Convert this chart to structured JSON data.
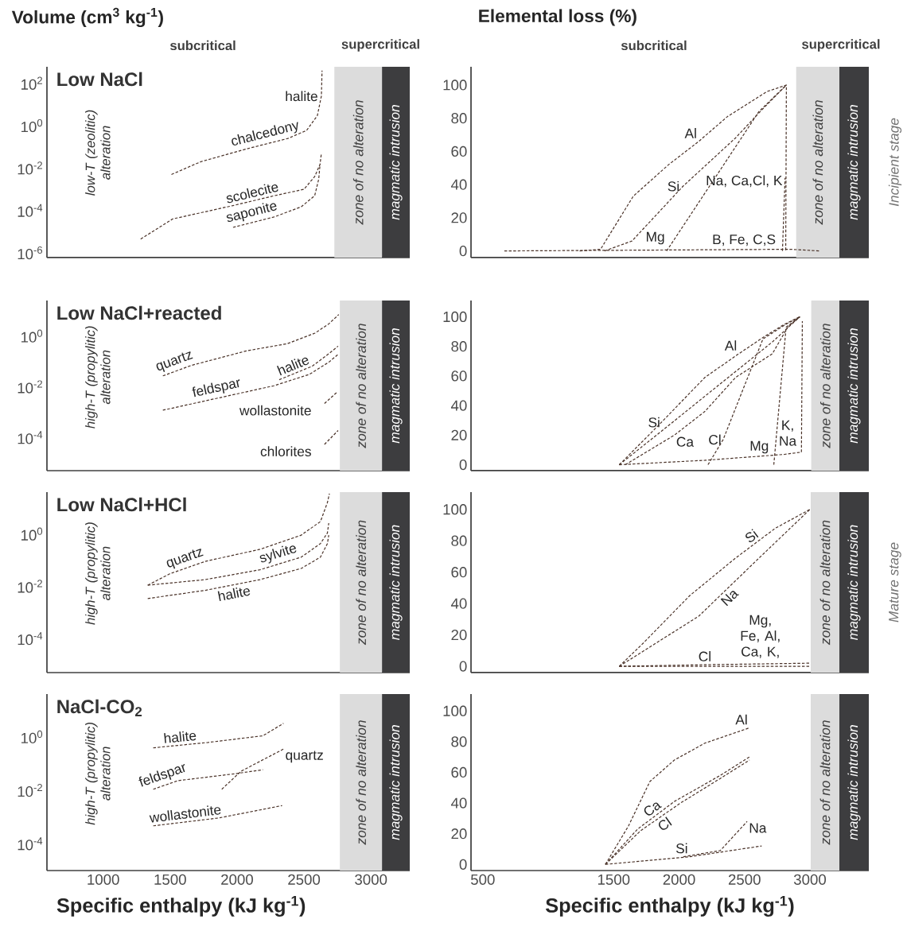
{
  "chart_data": [
    {
      "type": "line",
      "title": "Low NaCl",
      "ylabel": "Volume (cm$^{3}$ kg$^{-1}$)",
      "annotations": [
        "low-T (zeolitic) alteration",
        "subcritical",
        "supercritical"
      ],
      "log": true,
      "line_style": "dashed",
      "tick_labels": "y",
      "xlim": [
        580,
        3290
      ],
      "ylim": [
        6e-07,
        600
      ],
      "yticks": [
        {
          "value": 1e-06,
          "label": "10$^{-6}$"
        },
        {
          "value": 0.0001,
          "label": "10$^{-4}$"
        },
        {
          "value": 0.01,
          "label": "10$^{-2}$"
        },
        {
          "value": 1,
          "label": "10$^{0}$"
        },
        {
          "value": 100,
          "label": "10$^{2}$"
        }
      ],
      "bands": [
        {
          "axis": "x",
          "from": 2727,
          "to": 3083,
          "label": "zone of no alteration",
          "color": "#dcdcdc"
        },
        {
          "axis": "x",
          "from": 3083,
          "to": 3290,
          "label": "magmatic intrusion",
          "color": "#3d3d3f"
        }
      ],
      "series": [
        {
          "name": "halite",
          "color": "#4a3228",
          "x": [
            2520,
            2600,
            2630,
            2635
          ],
          "values": [
            0.6,
            3,
            25,
            400
          ]
        },
        {
          "name": "chalcedony",
          "color": "#4a3228",
          "x": [
            1510,
            1730,
            2070,
            2380,
            2520
          ],
          "values": [
            0.005,
            0.02,
            0.08,
            0.25,
            0.6
          ]
        },
        {
          "name": "scolecite",
          "color": "#4a3228",
          "x": [
            1280,
            1520,
            1970,
            2280,
            2500,
            2580,
            2620,
            2630
          ],
          "values": [
            4.5e-06,
            4e-05,
            0.00017,
            0.0005,
            0.001,
            0.004,
            0.015,
            0.05
          ]
        },
        {
          "name": "saponite",
          "color": "#4a3228",
          "x": [
            1970,
            2280,
            2480,
            2580,
            2610,
            2620
          ],
          "values": [
            1.6e-05,
            5e-05,
            0.00015,
            0.0005,
            0.003,
            0.015
          ]
        }
      ]
    },
    {
      "type": "line",
      "ylabel": "Elemental loss (%)",
      "annotations": [
        "subcritical",
        "supercritical",
        "Incipient stage"
      ],
      "line_style": "dashed",
      "tick_labels": "y",
      "xlim": [
        410,
        3450
      ],
      "ylim": [
        -4,
        111
      ],
      "yticks": [
        0,
        20,
        40,
        60,
        80,
        100
      ],
      "bands": [
        {
          "axis": "x",
          "from": 2895,
          "to": 3225,
          "label": "zone of no alteration",
          "color": "#dcdcdc"
        },
        {
          "axis": "x",
          "from": 3225,
          "to": 3450,
          "label": "magmatic intrusion",
          "color": "#3d3d3f"
        }
      ],
      "series": [
        {
          "name": "Al",
          "color": "#4a3228",
          "x": [
            1240,
            1400,
            1650,
            1920,
            2150,
            2370,
            2670,
            2820,
            2815
          ],
          "values": [
            0,
            1,
            33,
            52,
            66,
            81,
            96,
            100,
            0
          ]
        },
        {
          "name": "Si",
          "color": "#4a3228",
          "x": [
            1430,
            1640,
            2030,
            2430,
            2620,
            2820
          ],
          "values": [
            0,
            6,
            39,
            68,
            84,
            100
          ]
        },
        {
          "name": "Mg",
          "color": "#4a3228",
          "x": [
            1905,
            2610,
            2820
          ],
          "values": [
            0,
            84,
            100
          ]
        },
        {
          "name": "Na, Ca,Cl, K",
          "color": "#4a3228",
          "x": [
            2790,
            2810
          ],
          "values": [
            0,
            44
          ]
        },
        {
          "name": "B, Fe, C,S",
          "color": "#4a3228",
          "x": [
            665,
            2850,
            3075
          ],
          "values": [
            0,
            1,
            0
          ]
        }
      ]
    },
    {
      "type": "line",
      "title": "Low NaCl+reacted",
      "annotations": [
        "high-T (propylitic) alteration"
      ],
      "log": true,
      "line_style": "dashed",
      "tick_labels": "y",
      "xlim": [
        580,
        3290
      ],
      "ylim": [
        5e-06,
        25
      ],
      "yticks": [
        {
          "value": 0.0001,
          "label": "10$^{-4}$"
        },
        {
          "value": 0.01,
          "label": "10$^{-2}$"
        },
        {
          "value": 1,
          "label": "10$^{0}$"
        }
      ],
      "bands": [
        {
          "axis": "x",
          "from": 2768,
          "to": 3083,
          "label": "zone of no alteration",
          "color": "#dcdcdc"
        },
        {
          "axis": "x",
          "from": 3083,
          "to": 3290,
          "label": "magmatic intrusion",
          "color": "#3d3d3f"
        }
      ],
      "series": [
        {
          "name": "quartz",
          "color": "#4a3228",
          "x": [
            1446,
            1660,
            2070,
            2377,
            2582,
            2685,
            2760
          ],
          "values": [
            0.027,
            0.07,
            0.26,
            0.5,
            1.3,
            3,
            7
          ]
        },
        {
          "name": "feldspar",
          "color": "#4a3228",
          "x": [
            1446,
            2275,
            2541,
            2685,
            2760
          ],
          "values": [
            0.0012,
            0.011,
            0.031,
            0.093,
            0.2
          ]
        },
        {
          "name": "halite",
          "color": "#4a3228",
          "x": [
            2315,
            2562,
            2685,
            2755
          ],
          "values": [
            0.019,
            0.065,
            0.2,
            0.4
          ]
        },
        {
          "name": "wollastonite",
          "color": "#4a3228",
          "x": [
            2653,
            2745
          ],
          "values": [
            0.0022,
            0.006
          ]
        },
        {
          "name": "chlorites",
          "color": "#4a3228",
          "x": [
            2653,
            2755
          ],
          "values": [
            5.4e-05,
            0.00019
          ]
        }
      ]
    },
    {
      "type": "line",
      "line_style": "dashed",
      "tick_labels": "y",
      "xlim": [
        410,
        3450
      ],
      "ylim": [
        -4,
        111
      ],
      "yticks": [
        0,
        20,
        40,
        60,
        80,
        100
      ],
      "bands": [
        {
          "axis": "x",
          "from": 3010,
          "to": 3225,
          "label": "zone of no alteration",
          "color": "#dcdcdc"
        },
        {
          "axis": "x",
          "from": 3225,
          "to": 3450,
          "label": "magmatic intrusion",
          "color": "#3d3d3f"
        }
      ],
      "series": [
        {
          "name": "Al",
          "color": "#4a3228",
          "x": [
            1543,
            1847,
            2197,
            2456,
            2641,
            2806,
            2923
          ],
          "values": [
            0,
            27,
            59,
            75,
            86,
            95,
            100
          ]
        },
        {
          "name": "Si",
          "color": "#4a3228",
          "x": [
            1543,
            1870,
            2432,
            2713,
            2923
          ],
          "values": [
            0,
            23,
            63,
            83,
            100
          ]
        },
        {
          "name": "Ca",
          "color": "#4a3228",
          "x": [
            1589,
            1964,
            2197,
            2432,
            2713,
            2830,
            2923
          ],
          "values": [
            0,
            20,
            36,
            59,
            75,
            93,
            100
          ]
        },
        {
          "name": "Cl",
          "color": "#4a3228",
          "x": [
            2221,
            2337,
            2641,
            2818,
            2923
          ],
          "values": [
            0,
            17,
            85,
            95,
            100
          ]
        },
        {
          "name": "Mg",
          "color": "#4a3228",
          "x": [
            2724,
            2818,
            2923
          ],
          "values": [
            0,
            93,
            100
          ]
        },
        {
          "name": "K, Na",
          "color": "#4a3228",
          "x": [
            1543,
            2197,
            2806,
            2935,
            2942
          ],
          "values": [
            0,
            3,
            7,
            8.5,
            97
          ]
        }
      ]
    },
    {
      "type": "line",
      "title": "Low NaCl+HCl",
      "annotations": [
        "high-T (propylitic) alteration"
      ],
      "log": true,
      "line_style": "dashed",
      "tick_labels": "y",
      "xlim": [
        580,
        3290
      ],
      "ylim": [
        5e-06,
        40
      ],
      "yticks": [
        {
          "value": 0.0001,
          "label": "10$^{-4}$"
        },
        {
          "value": 0.01,
          "label": "10$^{-2}$"
        },
        {
          "value": 1,
          "label": "10$^{0}$"
        }
      ],
      "bands": [
        {
          "axis": "x",
          "from": 2768,
          "to": 3083,
          "label": "zone of no alteration",
          "color": "#dcdcdc"
        },
        {
          "axis": "x",
          "from": 3083,
          "to": 3290,
          "label": "magmatic intrusion",
          "color": "#3d3d3f"
        }
      ],
      "series": [
        {
          "name": "quartz",
          "color": "#4a3228",
          "x": [
            1333,
            1497,
            1763,
            2172,
            2479,
            2623,
            2675,
            2690
          ],
          "values": [
            0.011,
            0.03,
            0.09,
            0.26,
            0.9,
            3,
            16,
            35
          ]
        },
        {
          "name": "sylvite",
          "color": "#4a3228",
          "x": [
            1333,
            1763,
            2172,
            2479,
            2623,
            2675,
            2685
          ],
          "values": [
            0.011,
            0.018,
            0.043,
            0.13,
            0.43,
            1.1,
            2.6
          ]
        },
        {
          "name": "halite",
          "color": "#4a3228",
          "x": [
            1333,
            1763,
            2172,
            2479,
            2623,
            2675,
            2685
          ],
          "values": [
            0.0034,
            0.007,
            0.018,
            0.048,
            0.13,
            0.43,
            0.9
          ]
        }
      ]
    },
    {
      "type": "line",
      "annotations": [
        "Mature stage"
      ],
      "line_style": "dashed",
      "tick_labels": "y",
      "xlim": [
        410,
        3450
      ],
      "ylim": [
        -4,
        111
      ],
      "yticks": [
        0,
        20,
        40,
        60,
        80,
        100
      ],
      "bands": [
        {
          "axis": "x",
          "from": 3006,
          "to": 3225,
          "label": "zone of no alteration",
          "color": "#dcdcdc"
        },
        {
          "axis": "x",
          "from": 3225,
          "to": 3450,
          "label": "magmatic intrusion",
          "color": "#3d3d3f"
        }
      ],
      "series": [
        {
          "name": "Si",
          "color": "#4a3228",
          "x": [
            1543,
            1729,
            2081,
            2432,
            2736,
            3000
          ],
          "values": [
            0,
            15,
            45,
            69,
            88,
            100
          ]
        },
        {
          "name": "Na",
          "color": "#4a3228",
          "x": [
            1543,
            2151,
            2549,
            3000
          ],
          "values": [
            0,
            32,
            64,
            100
          ]
        },
        {
          "name": "Cl",
          "color": "#4a3228",
          "x": [
            1543,
            2197,
            3000
          ],
          "values": [
            0,
            1,
            2
          ]
        },
        {
          "name": "Mg, Fe, Al, Ca, K,",
          "color": "#4a3228",
          "x": [
            1543,
            3000
          ],
          "values": [
            0,
            0
          ]
        }
      ]
    },
    {
      "type": "line",
      "title": "NaCl-CO$_{2}$",
      "xlabel": "Specific enthalpy (kJ kg$^{-1}$)",
      "annotations": [
        "high-T (propylitic) alteration"
      ],
      "log": true,
      "line_style": "dashed",
      "xlim": [
        580,
        3290
      ],
      "ylim": [
        1e-05,
        40
      ],
      "xticks": [
        1000,
        1500,
        2000,
        2500,
        3000
      ],
      "yticks": [
        {
          "value": 0.0001,
          "label": "10$^{-4}$"
        },
        {
          "value": 0.01,
          "label": "10$^{-2}$"
        },
        {
          "value": 1,
          "label": "10$^{0}$"
        }
      ],
      "bands": [
        {
          "axis": "x",
          "from": 2768,
          "to": 3083,
          "label": "zone of no alteration",
          "color": "#dcdcdc"
        },
        {
          "axis": "x",
          "from": 3083,
          "to": 3290,
          "label": "magmatic intrusion",
          "color": "#3d3d3f"
        }
      ],
      "series": [
        {
          "name": "halite",
          "color": "#4a3228",
          "x": [
            1374,
            1784,
            2193,
            2347
          ],
          "values": [
            0.39,
            0.62,
            1.1,
            3.2
          ]
        },
        {
          "name": "feldspar",
          "color": "#4a3228",
          "x": [
            1374,
            1558,
            1988,
            2193
          ],
          "values": [
            0.011,
            0.023,
            0.042,
            0.059
          ]
        },
        {
          "name": "quartz",
          "color": "#4a3228",
          "x": [
            1886,
            2030,
            2347
          ],
          "values": [
            0.011,
            0.052,
            0.35
          ]
        },
        {
          "name": "wollastonite",
          "color": "#4a3228",
          "x": [
            1374,
            1866,
            2337
          ],
          "values": [
            0.00047,
            0.00093,
            0.0027
          ]
        }
      ]
    },
    {
      "type": "line",
      "xlabel": "Specific enthalpy (kJ kg$^{-1}$)",
      "line_style": "dashed",
      "xlim": [
        410,
        3450
      ],
      "ylim": [
        -4,
        111
      ],
      "xticks": [
        500,
        1500,
        2000,
        2500,
        3000
      ],
      "yticks": [
        0,
        20,
        40,
        60,
        80,
        100
      ],
      "bands": [
        {
          "axis": "x",
          "from": 3006,
          "to": 3225,
          "label": "zone of no alteration",
          "color": "#dcdcdc"
        },
        {
          "axis": "x",
          "from": 3225,
          "to": 3450,
          "label": "magmatic intrusion",
          "color": "#3d3d3f"
        }
      ],
      "series": [
        {
          "name": "Al",
          "color": "#4a3228",
          "x": [
            1437,
            1613,
            1777,
            1964,
            2197,
            2538
          ],
          "values": [
            0,
            25,
            54,
            68,
            79,
            89
          ]
        },
        {
          "name": "Ca",
          "color": "#4a3228",
          "x": [
            1437,
            1683,
            1964,
            2315,
            2538
          ],
          "values": [
            0,
            23,
            41,
            58,
            70
          ]
        },
        {
          "name": "Cl",
          "color": "#4a3228",
          "x": [
            1437,
            1707,
            2011,
            2315,
            2538
          ],
          "values": [
            0,
            22,
            40,
            56,
            68
          ]
        },
        {
          "name": "Si",
          "color": "#4a3228",
          "x": [
            1437,
            2081,
            2631
          ],
          "values": [
            0,
            5,
            12
          ]
        },
        {
          "name": "Na",
          "color": "#4a3228",
          "x": [
            2033,
            2315,
            2520
          ],
          "values": [
            5,
            9,
            28
          ]
        }
      ]
    }
  ]
}
